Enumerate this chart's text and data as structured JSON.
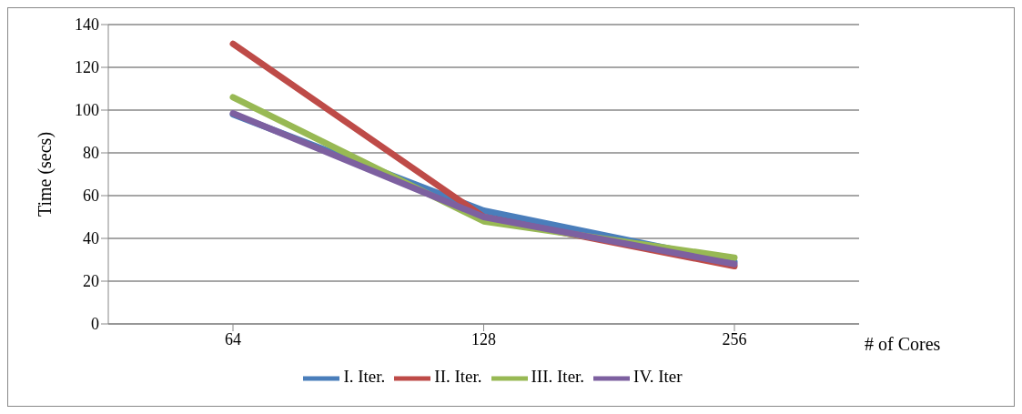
{
  "chart_data": {
    "type": "line",
    "xlabel": "# of Cores",
    "ylabel": "Time (secs)",
    "categories": [
      "64",
      "128",
      "256"
    ],
    "series": [
      {
        "name": "I. Iter.",
        "color": "#4a7ebb",
        "values": [
          98,
          53,
          29
        ]
      },
      {
        "name": "II. Iter.",
        "color": "#be4b48",
        "values": [
          131,
          50,
          27
        ]
      },
      {
        "name": "III. Iter.",
        "color": "#98b954",
        "values": [
          106,
          48,
          31
        ]
      },
      {
        "name": "IV. Iter",
        "color": "#7d60a0",
        "values": [
          98.5,
          50,
          28
        ]
      }
    ],
    "ylim": [
      0,
      140
    ],
    "yticks": [
      0,
      20,
      40,
      60,
      80,
      100,
      120,
      140
    ],
    "grid": "y",
    "legend": "bottom",
    "marker": "none",
    "line_style": "solid"
  }
}
